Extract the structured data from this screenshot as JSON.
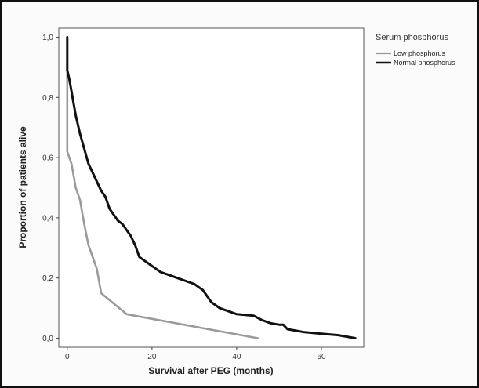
{
  "chart_data": {
    "type": "line",
    "title": "",
    "xlabel": "Survival after PEG (months)",
    "ylabel": "Proportion of patients alive",
    "xlim": [
      -2,
      70
    ],
    "ylim": [
      -0.03,
      1.03
    ],
    "x_ticks": [
      {
        "value": 0,
        "label": "0"
      },
      {
        "value": 20,
        "label": "20"
      },
      {
        "value": 40,
        "label": "40"
      },
      {
        "value": 60,
        "label": "60"
      }
    ],
    "y_ticks": [
      {
        "value": 0.0,
        "label": "0,0"
      },
      {
        "value": 0.2,
        "label": "0,2"
      },
      {
        "value": 0.4,
        "label": "0,4"
      },
      {
        "value": 0.6,
        "label": "0,6"
      },
      {
        "value": 0.8,
        "label": "0,8"
      },
      {
        "value": 1.0,
        "label": "1,0"
      }
    ],
    "grid": false,
    "legend": {
      "title": "Serum phosphorus",
      "placement": "right, outside plot"
    },
    "series": [
      {
        "name": "Low phosphorus",
        "color": "#9a9a9a",
        "points": [
          [
            0,
            1.0
          ],
          [
            0,
            0.62
          ],
          [
            1,
            0.58
          ],
          [
            2,
            0.5
          ],
          [
            3,
            0.46
          ],
          [
            4,
            0.38
          ],
          [
            5,
            0.31
          ],
          [
            6,
            0.27
          ],
          [
            7,
            0.23
          ],
          [
            8,
            0.15
          ],
          [
            14,
            0.08
          ],
          [
            45,
            0.0
          ]
        ]
      },
      {
        "name": "Normal phosphorus",
        "color": "#111111",
        "points": [
          [
            0,
            1.0
          ],
          [
            0,
            0.89
          ],
          [
            0.5,
            0.86
          ],
          [
            1,
            0.82
          ],
          [
            1.5,
            0.78
          ],
          [
            2,
            0.74
          ],
          [
            3,
            0.68
          ],
          [
            4,
            0.63
          ],
          [
            5,
            0.58
          ],
          [
            6,
            0.55
          ],
          [
            7,
            0.52
          ],
          [
            8,
            0.49
          ],
          [
            9,
            0.47
          ],
          [
            10,
            0.43
          ],
          [
            11,
            0.41
          ],
          [
            12,
            0.39
          ],
          [
            13,
            0.38
          ],
          [
            14,
            0.36
          ],
          [
            15,
            0.34
          ],
          [
            16,
            0.31
          ],
          [
            17,
            0.27
          ],
          [
            18,
            0.26
          ],
          [
            19,
            0.25
          ],
          [
            20,
            0.24
          ],
          [
            22,
            0.22
          ],
          [
            24,
            0.21
          ],
          [
            26,
            0.2
          ],
          [
            28,
            0.19
          ],
          [
            30,
            0.18
          ],
          [
            31,
            0.17
          ],
          [
            32,
            0.16
          ],
          [
            34,
            0.12
          ],
          [
            36,
            0.1
          ],
          [
            38,
            0.09
          ],
          [
            40,
            0.08
          ],
          [
            44,
            0.075
          ],
          [
            46,
            0.06
          ],
          [
            48,
            0.05
          ],
          [
            50,
            0.045
          ],
          [
            51,
            0.045
          ],
          [
            52,
            0.03
          ],
          [
            54,
            0.025
          ],
          [
            56,
            0.02
          ],
          [
            60,
            0.015
          ],
          [
            64,
            0.01
          ],
          [
            68,
            0.0
          ]
        ]
      }
    ]
  }
}
